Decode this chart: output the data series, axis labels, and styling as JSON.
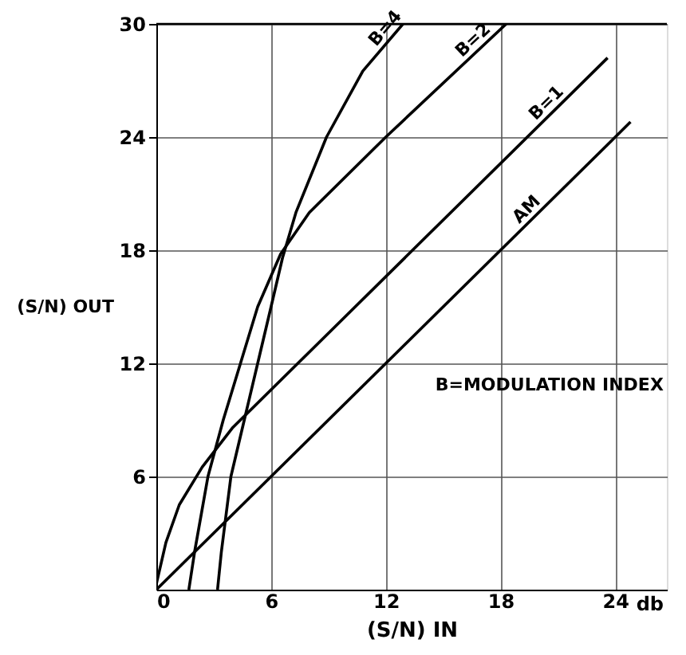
{
  "chart_data": {
    "type": "line",
    "xlabel": "(S/N) IN",
    "ylabel": "(S/N) OUT",
    "annotations": [
      "B=MODULATION INDEX",
      "db"
    ],
    "series": [
      {
        "name": "B=4",
        "color": "#000000",
        "x": [
          3.2,
          3.4,
          3.9,
          4.6,
          5.3,
          6.0,
          6.6,
          7.3,
          8.9,
          10.8,
          12.9
        ],
        "values": [
          0,
          2,
          6,
          9,
          12,
          15,
          17.6,
          20,
          24,
          27.5,
          30
        ]
      },
      {
        "name": "B=2",
        "color": "#000000",
        "x": [
          1.7,
          2.0,
          2.7,
          3.5,
          4.4,
          5.3,
          6.5,
          8,
          12,
          18.3
        ],
        "values": [
          0,
          2,
          6,
          9,
          12,
          15,
          17.8,
          20,
          24,
          30
        ]
      },
      {
        "name": "B=1",
        "color": "#000000",
        "x": [
          0,
          0.5,
          1.2,
          2.4,
          4,
          10,
          23.6
        ],
        "values": [
          0.3,
          2.5,
          4.5,
          6.5,
          8.6,
          14.6,
          28.2
        ]
      },
      {
        "name": "AM",
        "color": "#000000",
        "x": [
          0,
          24.8
        ],
        "values": [
          0,
          24.8
        ]
      }
    ],
    "xlim": [
      0,
      26.7
    ],
    "ylim": [
      0,
      30
    ],
    "xticks": [
      0,
      6,
      12,
      18,
      24
    ],
    "yticks": [
      6,
      12,
      18,
      24,
      30
    ],
    "grid": true,
    "marker": "none",
    "line_style": "solid"
  }
}
